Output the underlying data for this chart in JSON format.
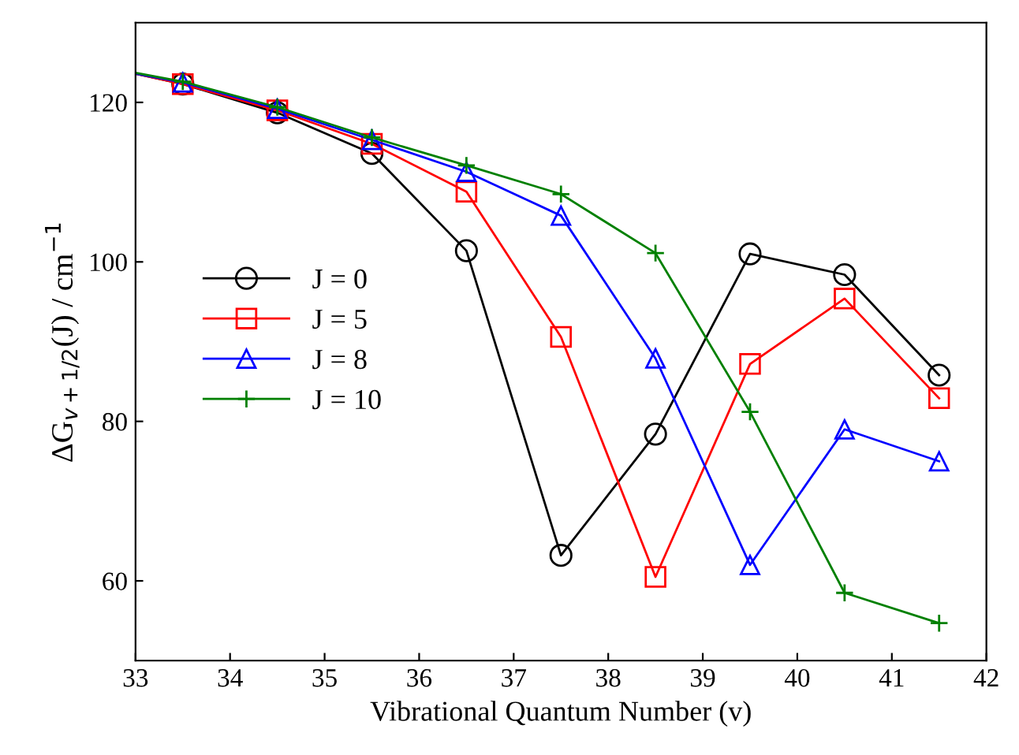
{
  "chart_data": {
    "type": "line",
    "xlabel": "Vibrational Quantum Number (v)",
    "ylabel": "ΔG$_{v+1/2}$(J) / cm$^{−1}$",
    "x": [
      33,
      33.5,
      34.5,
      35.5,
      36.5,
      37.5,
      38.5,
      39.5,
      40.5,
      41.5
    ],
    "series": [
      {
        "name": "J = 0",
        "color": "#000000",
        "marker": "circle",
        "values": [
          123.6,
          122.3,
          118.7,
          113.6,
          101.4,
          63.2,
          78.4,
          101,
          98.4,
          85.8
        ]
      },
      {
        "name": "J = 5",
        "color": "#ff0000",
        "marker": "square",
        "values": [
          123.6,
          122.3,
          119,
          114.8,
          108.8,
          90.6,
          60.5,
          87.2,
          95.4,
          82.9
        ]
      },
      {
        "name": "J = 8",
        "color": "#0000ff",
        "marker": "triangle",
        "values": [
          123.6,
          122.5,
          119.2,
          115.3,
          111.3,
          105.8,
          87.9,
          62,
          79,
          75
        ]
      },
      {
        "name": "J = 10",
        "color": "#008000",
        "marker": "cross",
        "values": [
          123.7,
          122.6,
          119.4,
          115.6,
          112.1,
          108.5,
          101.1,
          81.2,
          58.5,
          54.7
        ]
      }
    ],
    "xlim": [
      33,
      42
    ],
    "xticks": [
      33,
      34,
      35,
      36,
      37,
      38,
      39,
      40,
      41,
      42
    ],
    "ylim": [
      50,
      130
    ],
    "yticks": [
      60,
      80,
      100,
      120
    ],
    "grid": false,
    "legend": "left"
  }
}
